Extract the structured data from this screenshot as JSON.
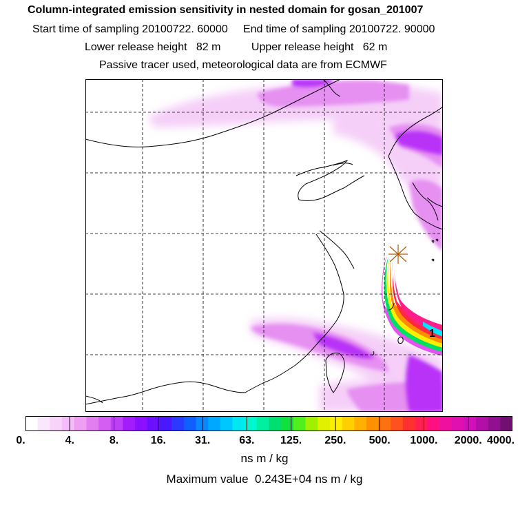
{
  "title": "Column-integrated emission sensitivity in nested domain for gosan_201007",
  "line2": "Start time of sampling 20100722. 60000     End time of sampling 20100722. 90000",
  "line3": "Lower release height   82 m          Upper release height   62 m",
  "line4": "Passive tracer used, meteorological data are from ECMWF",
  "map": {
    "station_label": "1",
    "colors": {
      "land_outline": "#000000",
      "grid": "#000000",
      "plume_light": "#f3c6f7",
      "plume_mid": "#e060f0",
      "plume_violet": "#a000ff",
      "plume_orange": "#ff8c00",
      "plume_red": "#ff2a2a",
      "plume_yellow": "#ffff00",
      "plume_green": "#00e060",
      "plume_cyan": "#00e8ff",
      "station_marker": "#c06000"
    }
  },
  "colorbar": {
    "tick_labels": [
      "0.",
      "4.",
      "8.",
      "16.",
      "31.",
      "63.",
      "125.",
      "250.",
      "500.",
      "1000.",
      "2000.",
      "4000."
    ],
    "colors": [
      "#ffffff",
      "#fbe7fb",
      "#f7d2f9",
      "#f3bdf7",
      "#ee9ff3",
      "#e37ef1",
      "#d35ef1",
      "#bd3ff6",
      "#a31dfc",
      "#8a10ff",
      "#6a10ff",
      "#4a18ff",
      "#2a3bff",
      "#1060ff",
      "#0a86ff",
      "#00a8ff",
      "#00c8ff",
      "#00e8f0",
      "#00f8d0",
      "#00f0a0",
      "#00e070",
      "#10e040",
      "#50f020",
      "#a0f000",
      "#e0f000",
      "#ffee00",
      "#ffd000",
      "#ffb000",
      "#ff9000",
      "#ff7010",
      "#ff5020",
      "#ff3030",
      "#ff2050",
      "#ff1080",
      "#f010a0",
      "#e010b0",
      "#d010b8",
      "#b010a8",
      "#901090",
      "#701070"
    ]
  },
  "units": "ns m / kg",
  "max_value": "Maximum value  0.243E+04 ns m / kg"
}
